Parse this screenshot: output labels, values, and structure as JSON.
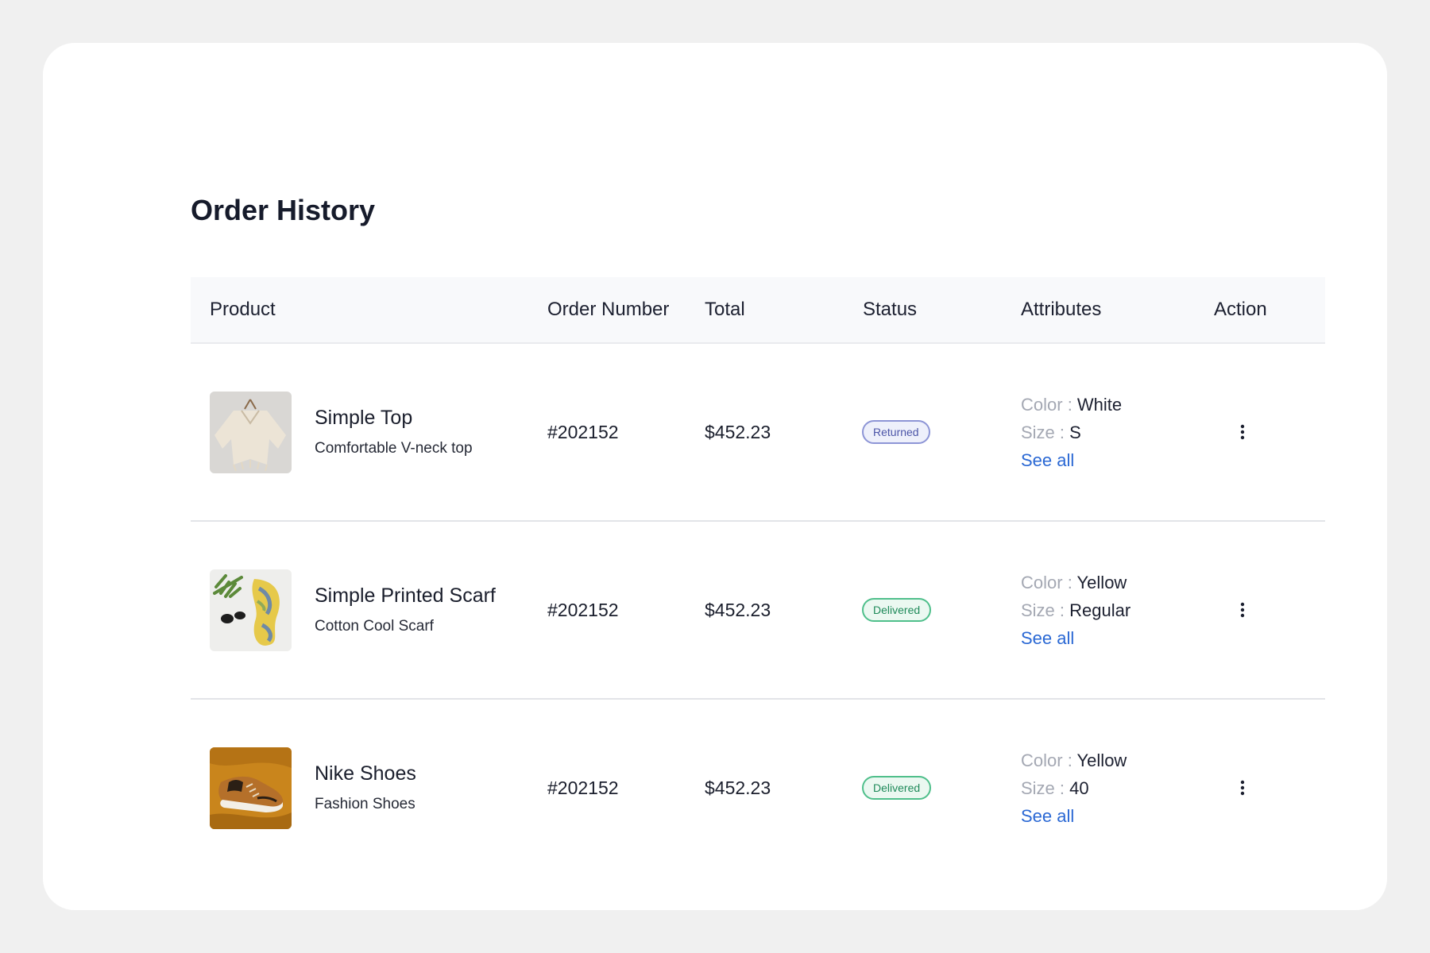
{
  "page": {
    "title": "Order History"
  },
  "table": {
    "headers": {
      "product": "Product",
      "order_number": "Order Number",
      "total": "Total",
      "status": "Status",
      "attributes": "Attributes",
      "action": "Action"
    },
    "attr_labels": {
      "color": "Color",
      "size": "Size",
      "separator": " : "
    },
    "see_all_label": "See all",
    "rows": [
      {
        "name": "Simple Top",
        "description": "Comfortable V-neck top",
        "thumb_icon": "knit-top-image",
        "order_number": "#202152",
        "total": "$452.23",
        "status": "Returned",
        "color": "White",
        "size": "S"
      },
      {
        "name": "Simple Printed Scarf",
        "description": "Cotton Cool Scarf",
        "thumb_icon": "printed-scarf-image",
        "order_number": "#202152",
        "total": "$452.23",
        "status": "Delivered",
        "color": "Yellow",
        "size": "Regular"
      },
      {
        "name": "Nike Shoes",
        "description": "Fashion Shoes",
        "thumb_icon": "sneaker-image",
        "order_number": "#202152",
        "total": "$452.23",
        "status": "Delivered",
        "color": "Yellow",
        "size": "40"
      }
    ]
  },
  "colors": {
    "returned": "#4c55a8",
    "delivered": "#1f8a5a",
    "link": "#2a68d4"
  },
  "icons": {
    "action": "more-vertical-icon"
  }
}
